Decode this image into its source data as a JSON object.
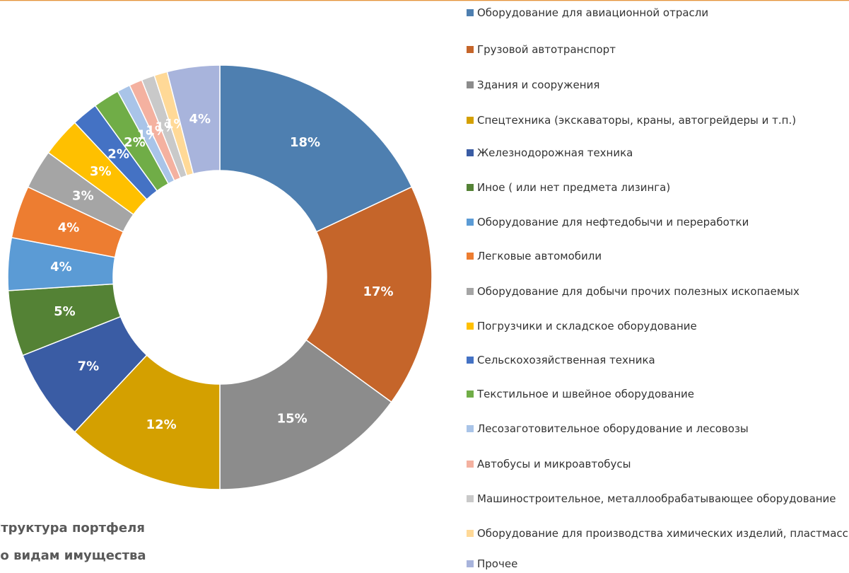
{
  "chart_data": {
    "type": "donut",
    "title": [
      "Структура портфеля",
      "по видам имущества"
    ],
    "categories": [
      "Оборудование для авиационной отрасли",
      "Грузовой автотранспорт",
      "Здания и сооружения",
      "Спецтехника (экскаваторы, краны, автогрейдеры и т.п.)",
      "Железнодорожная техника",
      "Иное ( или нет предмета лизинга)",
      "Оборудование для нефтедобычи и переработки",
      "Легковые автомобили",
      "Оборудование для добычи прочих полезных ископаемых",
      "Погрузчики и складское оборудование",
      "Сельскохозяйственная техника",
      "Текстильное и швейное оборудование",
      "Лесозаготовительное оборудование и лесовозы",
      "Автобусы и микроавтобусы",
      "Машиностроительное, металлообрабатывающее оборудование",
      "Оборудование для производства химических изделий, пластмасс",
      "Прочее"
    ],
    "values": [
      18,
      17,
      15,
      12,
      7,
      5,
      4,
      4,
      3,
      3,
      2,
      2,
      1,
      1,
      1,
      1,
      4
    ],
    "value_labels": [
      "18%",
      "17%",
      "15%",
      "12%",
      "7%",
      "5%",
      "4%",
      "4%",
      "3%",
      "3%",
      "2%",
      "2%",
      "1%",
      "1%",
      "1%",
      "1%",
      "4%"
    ],
    "colors": [
      "#4e7fb0",
      "#c5652a",
      "#8c8c8c",
      "#d4a000",
      "#3a5ca4",
      "#548235",
      "#5b9bd5",
      "#ed7d31",
      "#a5a5a5",
      "#ffc000",
      "#4472c4",
      "#70ad47",
      "#a9c4e8",
      "#f4b1a0",
      "#c9c9c9",
      "#ffd997",
      "#a8b4dc"
    ],
    "legend": "right"
  }
}
